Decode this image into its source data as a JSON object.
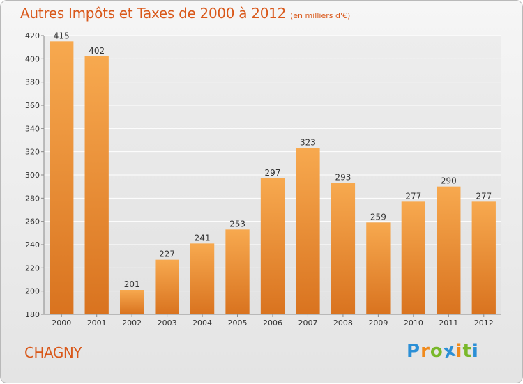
{
  "title": "Autres Impôts et Taxes de 2000 à 2012",
  "subtitle": "(en milliers d'€)",
  "city": "CHAGNY",
  "logo": {
    "letters": [
      "P",
      "r",
      "o",
      "x",
      "i",
      "t",
      "i"
    ],
    "colors": [
      "#2b8fd6",
      "#f08a1c",
      "#79b82a",
      "#2b8fd6",
      "#f08a1c",
      "#79b82a",
      "#2b8fd6"
    ]
  },
  "colors": {
    "title": "#d9581a",
    "bar_top": "#f7a94f",
    "bar_bottom": "#d9731f",
    "axis_text": "#333333"
  },
  "chart_data": {
    "type": "bar",
    "categories": [
      "2000",
      "2001",
      "2002",
      "2003",
      "2004",
      "2005",
      "2006",
      "2007",
      "2008",
      "2009",
      "2010",
      "2011",
      "2012"
    ],
    "values": [
      415,
      402,
      201,
      227,
      241,
      253,
      297,
      323,
      293,
      259,
      277,
      290,
      277
    ],
    "data_labels": [
      "415",
      "402",
      "201",
      "227",
      "241",
      "253",
      "297",
      "323",
      "293",
      "259",
      "277",
      "290",
      "277"
    ],
    "ylim": [
      180,
      420
    ],
    "yticks": [
      "180",
      "200",
      "220",
      "240",
      "260",
      "280",
      "300",
      "320",
      "340",
      "360",
      "380",
      "400",
      "420"
    ],
    "xlabel": "",
    "ylabel": "",
    "grid": true
  }
}
